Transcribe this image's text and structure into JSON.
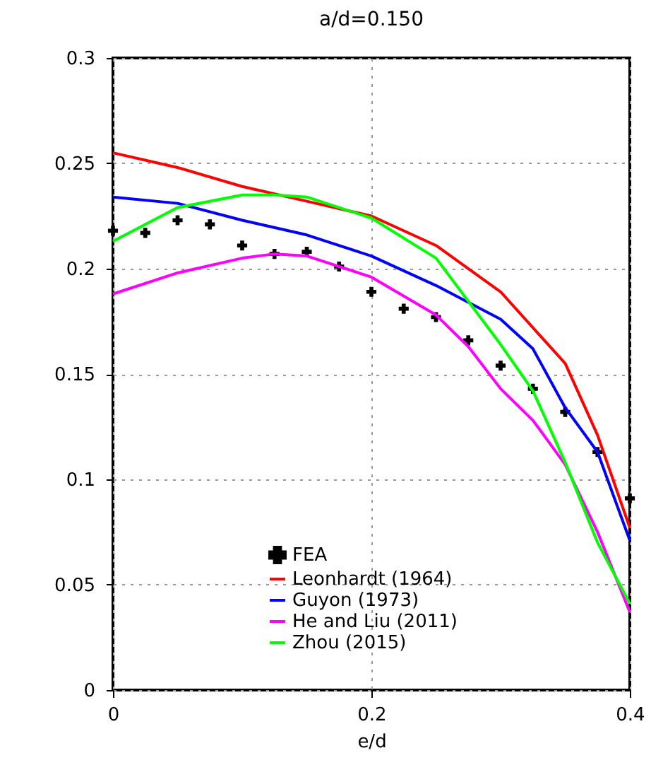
{
  "chart_data": {
    "type": "line",
    "title": "a/d=0.150",
    "xlabel": "e/d",
    "xlim": [
      0,
      0.4
    ],
    "xticks": [
      0,
      0.2,
      0.4
    ],
    "ylim": [
      0,
      0.3
    ],
    "yticks": [
      0,
      0.05,
      0.1,
      0.15,
      0.2,
      0.25,
      0.3
    ],
    "grid": true,
    "legend": "bottom",
    "line_style": "solid",
    "series": [
      {
        "name": "FEA",
        "type": "scatter",
        "marker": "cross",
        "color": "#000000",
        "x": [
          0,
          0.025,
          0.05,
          0.075,
          0.1,
          0.125,
          0.15,
          0.175,
          0.2,
          0.225,
          0.25,
          0.275,
          0.3,
          0.325,
          0.35,
          0.375,
          0.4
        ],
        "values": [
          0.218,
          0.217,
          0.223,
          0.221,
          0.211,
          0.207,
          0.208,
          0.201,
          0.189,
          0.181,
          0.177,
          0.166,
          0.154,
          0.143,
          0.132,
          0.113,
          0.091
        ]
      },
      {
        "name": "Leonhardt (1964)",
        "color": "#ff0000",
        "x": [
          0,
          0.05,
          0.1,
          0.15,
          0.2,
          0.25,
          0.3,
          0.35,
          0.375,
          0.4
        ],
        "values": [
          0.255,
          0.248,
          0.239,
          0.232,
          0.225,
          0.211,
          0.189,
          0.155,
          0.121,
          0.077
        ]
      },
      {
        "name": "Guyon (1973)",
        "color": "#0000ff",
        "x": [
          0,
          0.05,
          0.1,
          0.15,
          0.2,
          0.25,
          0.3,
          0.325,
          0.35,
          0.375,
          0.4
        ],
        "values": [
          0.234,
          0.231,
          0.223,
          0.216,
          0.206,
          0.192,
          0.176,
          0.162,
          0.134,
          0.113,
          0.071
        ]
      },
      {
        "name": "He and Liu (2011)",
        "color": "#ff00ff",
        "x": [
          0,
          0.05,
          0.1,
          0.125,
          0.15,
          0.2,
          0.25,
          0.275,
          0.3,
          0.325,
          0.35,
          0.375,
          0.4
        ],
        "values": [
          0.188,
          0.198,
          0.205,
          0.207,
          0.206,
          0.196,
          0.178,
          0.163,
          0.143,
          0.128,
          0.107,
          0.075,
          0.037
        ]
      },
      {
        "name": "Zhou (2015)",
        "color": "#00ff00",
        "x": [
          0,
          0.05,
          0.1,
          0.125,
          0.15,
          0.2,
          0.25,
          0.3,
          0.325,
          0.35,
          0.375,
          0.4
        ],
        "values": [
          0.213,
          0.229,
          0.235,
          0.235,
          0.234,
          0.224,
          0.205,
          0.164,
          0.142,
          0.108,
          0.07,
          0.041
        ]
      }
    ]
  }
}
